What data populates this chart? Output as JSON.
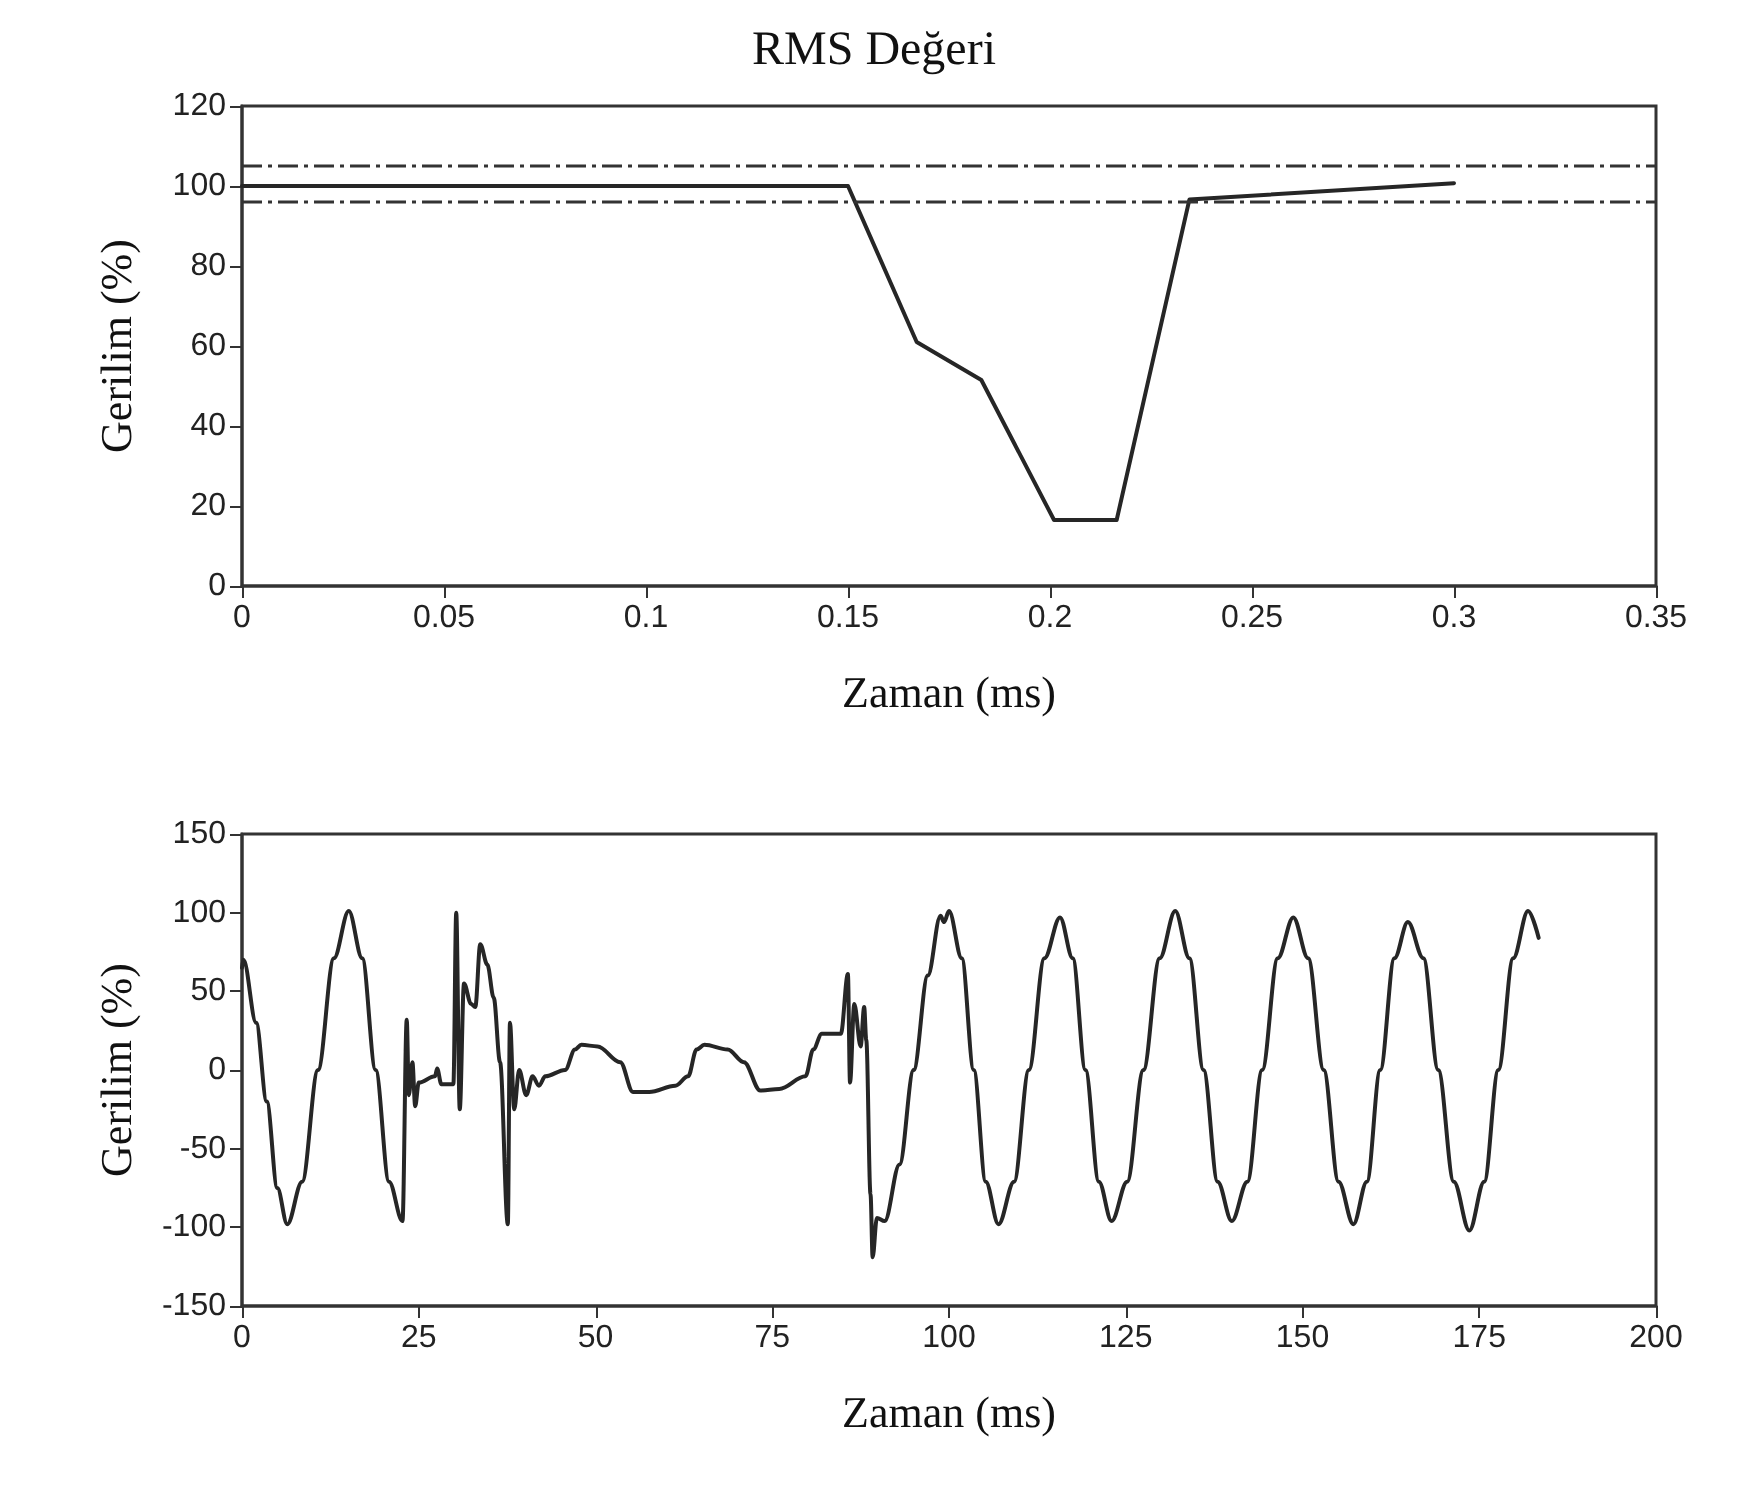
{
  "chart_data": [
    {
      "type": "line",
      "title": "RMS Değeri",
      "xlabel": "Zaman (ms)",
      "ylabel": "Gerilim (%)",
      "x": [
        0,
        0.15,
        0.167,
        0.183,
        0.201,
        0.2165,
        0.2345,
        0.3
      ],
      "series": [
        {
          "color": "#262626",
          "values": [
            100,
            100,
            61,
            51.5,
            16.5,
            16.5,
            96.6,
            100.7
          ]
        }
      ],
      "xlim": [
        0,
        0.35
      ],
      "xticks": [
        0,
        0.05,
        0.1,
        0.15,
        0.2,
        0.25,
        0.3,
        0.35
      ],
      "ylim": [
        0,
        120
      ],
      "yticks": [
        0,
        20,
        40,
        60,
        80,
        100,
        120
      ],
      "ref_lines": [
        {
          "axis": "y",
          "value": 105,
          "color": "#333333",
          "line_style": "dashed"
        },
        {
          "axis": "y",
          "value": 96,
          "color": "#333333",
          "line_style": "dashed"
        }
      ],
      "grid": false,
      "marker": "none",
      "line_style": "solid"
    },
    {
      "type": "line",
      "xlabel": "Zaman (ms)",
      "ylabel": "Gerilim (%)",
      "x": [
        0,
        0.2,
        2,
        3.5,
        5,
        6.4,
        8.5,
        10.75,
        13,
        15.1,
        17,
        18.9,
        20.8,
        22.7,
        23.3,
        23.6,
        24.1,
        24.5,
        25,
        27.3,
        27.6,
        28.2,
        29.9,
        30.3,
        30.8,
        31.4,
        32.4,
        33,
        33.7,
        34.7,
        35.6,
        36.5,
        37.6,
        37.9,
        38.5,
        39.2,
        40.2,
        41.1,
        42,
        42.9,
        45.7,
        47.1,
        48,
        50.3,
        53.5,
        55.3,
        57.6,
        61.3,
        63.1,
        64.3,
        65.4,
        68.7,
        71,
        73.3,
        76,
        79.7,
        80.8,
        82,
        84.7,
        85.7,
        86,
        86.6,
        87.5,
        88,
        88.3,
        88.9,
        89.2,
        89.8,
        90.9,
        93,
        95,
        97,
        98.8,
        99.3,
        100,
        101.8,
        103.5,
        105.2,
        107,
        109.2,
        111.3,
        113.5,
        115.7,
        117.5,
        119.3,
        121.2,
        123,
        125.2,
        127.5,
        129.8,
        132,
        134,
        136,
        138,
        140,
        142.2,
        144.3,
        146.5,
        148.7,
        150.8,
        153,
        155.1,
        157.2,
        159.1,
        161,
        163,
        164.9,
        167.1,
        169.2,
        171.4,
        173.6,
        175.7,
        177.7,
        179.8,
        181.9,
        183.4
      ],
      "series": [
        {
          "color": "#262626",
          "values": [
            65,
            70,
            30,
            -20,
            -75,
            -98,
            -71,
            0,
            71,
            101,
            71,
            0,
            -71,
            -96,
            32,
            -16,
            5,
            -23,
            -8,
            -4,
            1,
            -9,
            -9,
            100,
            -25,
            55,
            42,
            40,
            80,
            67,
            46,
            5,
            -98,
            30,
            -25,
            0,
            -16,
            -4,
            -10,
            -4,
            0,
            13,
            16,
            15,
            5,
            -14,
            -14,
            -10,
            -4,
            13,
            16,
            13,
            5,
            -13,
            -12,
            -4,
            13,
            23,
            23,
            61,
            -8,
            42,
            15,
            40,
            19,
            -79,
            -119,
            -94,
            -96,
            -60,
            0,
            60,
            98,
            94,
            101,
            71,
            0,
            -71,
            -98,
            -71,
            0,
            71,
            97,
            71,
            0,
            -71,
            -96,
            -71,
            0,
            71,
            101,
            71,
            0,
            -71,
            -96,
            -71,
            0,
            71,
            97,
            71,
            0,
            -71,
            -98,
            -71,
            0,
            71,
            94,
            71,
            0,
            -71,
            -102,
            -71,
            0,
            71,
            101,
            84
          ]
        }
      ],
      "xlim": [
        0,
        200
      ],
      "xticks": [
        0,
        25,
        50,
        75,
        100,
        125,
        150,
        175,
        200
      ],
      "ylim": [
        -150,
        150
      ],
      "yticks": [
        -150,
        -100,
        -50,
        0,
        50,
        100,
        150
      ],
      "grid": false,
      "marker": "none",
      "line_style": "solid"
    }
  ]
}
